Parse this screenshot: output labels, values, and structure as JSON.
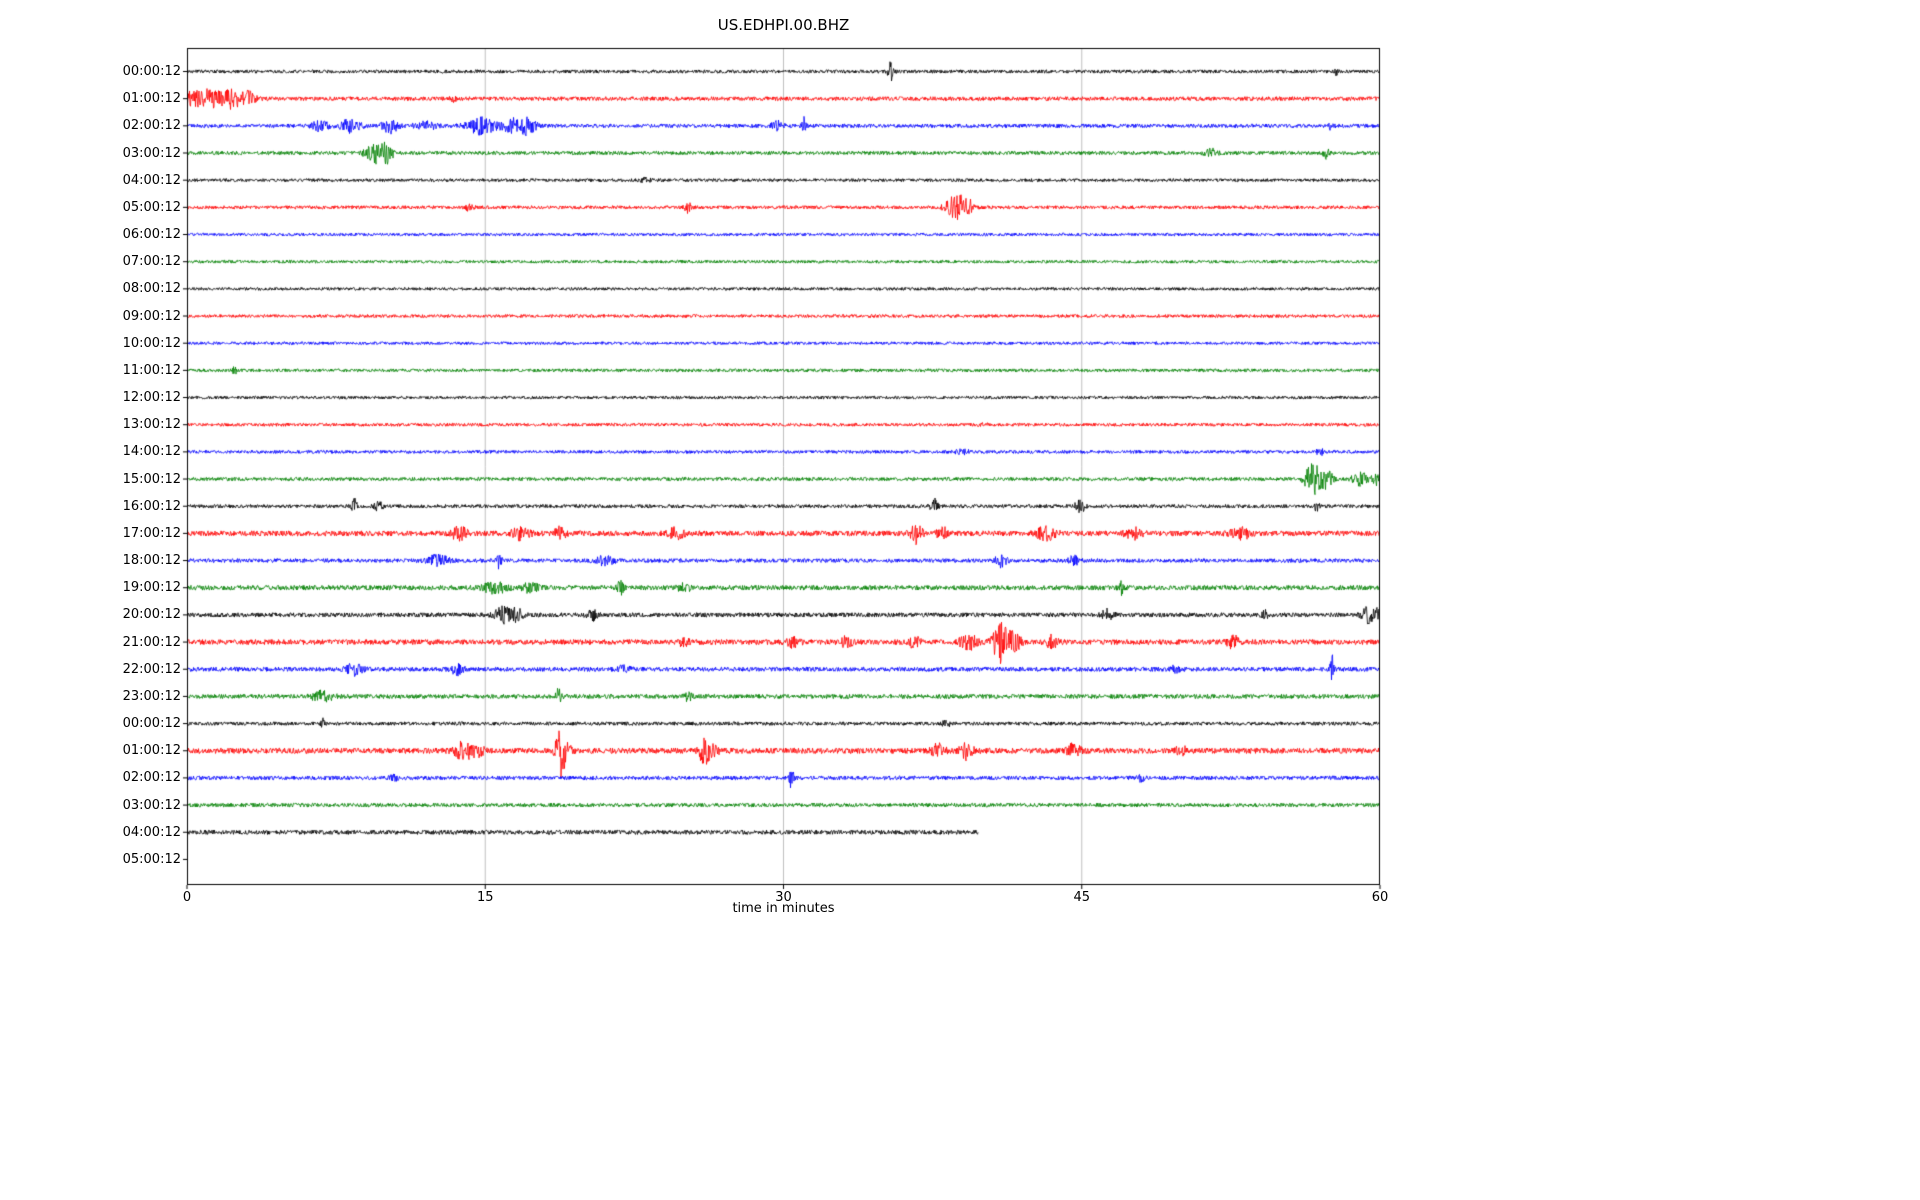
{
  "figure": {
    "title": "US.EDHPI.00.BHZ",
    "xlabel": "time in minutes",
    "background": "#ffffff"
  },
  "chart_data": {
    "type": "line",
    "subtype": "seismogram-helicorder-dayplot",
    "title": "US.EDHPI.00.BHZ",
    "xlabel": "time in minutes",
    "x_ticks": [
      "0",
      "15",
      "30",
      "45",
      "60"
    ],
    "x_range_minutes": [
      0,
      60
    ],
    "grid_minutes": [
      15,
      30,
      45
    ],
    "grid_on": true,
    "grid_color": "#b0b0b0",
    "axis_color": "#000000",
    "trace_color_cycle": [
      "#000000",
      "#ff0000",
      "#0000ff",
      "#008000"
    ],
    "rows": [
      {
        "label": "00:00:12",
        "color": "#000000",
        "noise": 1.7,
        "duration": 60,
        "events": [
          {
            "t": 35.4,
            "a": 10,
            "w": 0.15
          },
          {
            "t": 57.8,
            "a": 4,
            "w": 0.1
          }
        ]
      },
      {
        "label": "01:00:12",
        "color": "#ff0000",
        "noise": 2.0,
        "duration": 60,
        "events": [
          {
            "t": 0.3,
            "a": 8,
            "w": 0.4
          },
          {
            "t": 1.2,
            "a": 9,
            "w": 0.5
          },
          {
            "t": 2.2,
            "a": 9,
            "w": 0.5
          },
          {
            "t": 3.0,
            "a": 7,
            "w": 0.4
          },
          {
            "t": 13.5,
            "a": 3,
            "w": 0.2
          }
        ]
      },
      {
        "label": "02:00:12",
        "color": "#0000ff",
        "noise": 1.9,
        "duration": 60,
        "events": [
          {
            "t": 6.7,
            "a": 5,
            "w": 0.4
          },
          {
            "t": 8.2,
            "a": 6,
            "w": 0.5
          },
          {
            "t": 10.2,
            "a": 7,
            "w": 0.4
          },
          {
            "t": 12.0,
            "a": 4,
            "w": 0.5
          },
          {
            "t": 14.8,
            "a": 8,
            "w": 0.7
          },
          {
            "t": 16.5,
            "a": 7,
            "w": 0.6
          },
          {
            "t": 17.2,
            "a": 6,
            "w": 0.4
          },
          {
            "t": 29.7,
            "a": 4,
            "w": 0.3
          },
          {
            "t": 31.0,
            "a": 13,
            "w": 0.1
          },
          {
            "t": 57.5,
            "a": 3,
            "w": 0.2
          }
        ]
      },
      {
        "label": "03:00:12",
        "color": "#008000",
        "noise": 1.8,
        "duration": 60,
        "events": [
          {
            "t": 9.5,
            "a": 10,
            "w": 0.5
          },
          {
            "t": 10.1,
            "a": 7,
            "w": 0.3
          },
          {
            "t": 51.5,
            "a": 4,
            "w": 0.3
          },
          {
            "t": 57.3,
            "a": 5,
            "w": 0.15
          }
        ]
      },
      {
        "label": "04:00:12",
        "color": "#000000",
        "noise": 1.6,
        "duration": 60,
        "events": [
          {
            "t": 23.0,
            "a": 2,
            "w": 0.3
          }
        ]
      },
      {
        "label": "05:00:12",
        "color": "#ff0000",
        "noise": 1.7,
        "duration": 60,
        "events": [
          {
            "t": 14.2,
            "a": 3,
            "w": 0.2
          },
          {
            "t": 25.2,
            "a": 5,
            "w": 0.2
          },
          {
            "t": 38.7,
            "a": 12,
            "w": 0.5
          },
          {
            "t": 39.3,
            "a": 6,
            "w": 0.3
          }
        ]
      },
      {
        "label": "06:00:12",
        "color": "#0000ff",
        "noise": 1.5,
        "duration": 60,
        "events": []
      },
      {
        "label": "07:00:12",
        "color": "#008000",
        "noise": 1.5,
        "duration": 60,
        "events": []
      },
      {
        "label": "08:00:12",
        "color": "#000000",
        "noise": 1.5,
        "duration": 60,
        "events": []
      },
      {
        "label": "09:00:12",
        "color": "#ff0000",
        "noise": 1.6,
        "duration": 60,
        "events": []
      },
      {
        "label": "10:00:12",
        "color": "#0000ff",
        "noise": 1.5,
        "duration": 60,
        "events": []
      },
      {
        "label": "11:00:12",
        "color": "#008000",
        "noise": 1.6,
        "duration": 60,
        "events": [
          {
            "t": 2.4,
            "a": 4,
            "w": 0.1
          }
        ]
      },
      {
        "label": "12:00:12",
        "color": "#000000",
        "noise": 1.5,
        "duration": 60,
        "events": []
      },
      {
        "label": "13:00:12",
        "color": "#ff0000",
        "noise": 1.6,
        "duration": 60,
        "events": [
          {
            "t": 40.0,
            "a": 2,
            "w": 0.2
          }
        ]
      },
      {
        "label": "14:00:12",
        "color": "#0000ff",
        "noise": 1.6,
        "duration": 60,
        "events": [
          {
            "t": 39.0,
            "a": 3,
            "w": 0.3
          },
          {
            "t": 57.0,
            "a": 3,
            "w": 0.2
          }
        ]
      },
      {
        "label": "15:00:12",
        "color": "#008000",
        "noise": 1.8,
        "duration": 60,
        "events": [
          {
            "t": 56.6,
            "a": 18,
            "w": 0.35
          },
          {
            "t": 57.3,
            "a": 10,
            "w": 0.3
          },
          {
            "t": 59.0,
            "a": 6,
            "w": 0.4
          },
          {
            "t": 59.8,
            "a": 6,
            "w": 0.2
          }
        ]
      },
      {
        "label": "16:00:12",
        "color": "#000000",
        "noise": 1.8,
        "duration": 60,
        "events": [
          {
            "t": 8.4,
            "a": 7,
            "w": 0.15
          },
          {
            "t": 9.6,
            "a": 6,
            "w": 0.2
          },
          {
            "t": 37.6,
            "a": 7,
            "w": 0.2
          },
          {
            "t": 44.9,
            "a": 10,
            "w": 0.2
          },
          {
            "t": 56.8,
            "a": 4,
            "w": 0.15
          }
        ]
      },
      {
        "label": "17:00:12",
        "color": "#ff0000",
        "noise": 2.6,
        "duration": 60,
        "events": [
          {
            "t": 13.7,
            "a": 6,
            "w": 0.4
          },
          {
            "t": 16.8,
            "a": 7,
            "w": 0.4
          },
          {
            "t": 18.8,
            "a": 6,
            "w": 0.3
          },
          {
            "t": 24.6,
            "a": 5,
            "w": 0.4
          },
          {
            "t": 36.7,
            "a": 9,
            "w": 0.3
          },
          {
            "t": 38.0,
            "a": 5,
            "w": 0.3
          },
          {
            "t": 43.2,
            "a": 6,
            "w": 0.5
          },
          {
            "t": 47.6,
            "a": 5,
            "w": 0.4
          },
          {
            "t": 53.0,
            "a": 5,
            "w": 0.5
          }
        ]
      },
      {
        "label": "18:00:12",
        "color": "#0000ff",
        "noise": 2.0,
        "duration": 60,
        "events": [
          {
            "t": 12.6,
            "a": 6,
            "w": 0.5
          },
          {
            "t": 15.7,
            "a": 9,
            "w": 0.12
          },
          {
            "t": 21.0,
            "a": 4,
            "w": 0.5
          },
          {
            "t": 40.9,
            "a": 6,
            "w": 0.3
          },
          {
            "t": 44.6,
            "a": 4,
            "w": 0.3
          }
        ]
      },
      {
        "label": "19:00:12",
        "color": "#008000",
        "noise": 2.4,
        "duration": 60,
        "events": [
          {
            "t": 15.5,
            "a": 5,
            "w": 0.6
          },
          {
            "t": 17.3,
            "a": 5,
            "w": 0.4
          },
          {
            "t": 21.8,
            "a": 7,
            "w": 0.15
          },
          {
            "t": 25.0,
            "a": 4,
            "w": 0.3
          },
          {
            "t": 47.0,
            "a": 7,
            "w": 0.15
          }
        ]
      },
      {
        "label": "20:00:12",
        "color": "#000000",
        "noise": 2.2,
        "duration": 60,
        "events": [
          {
            "t": 15.9,
            "a": 8,
            "w": 0.4
          },
          {
            "t": 16.6,
            "a": 6,
            "w": 0.3
          },
          {
            "t": 20.4,
            "a": 5,
            "w": 0.3
          },
          {
            "t": 46.3,
            "a": 5,
            "w": 0.3
          },
          {
            "t": 54.2,
            "a": 4,
            "w": 0.2
          },
          {
            "t": 59.4,
            "a": 8,
            "w": 0.3
          },
          {
            "t": 59.9,
            "a": 6,
            "w": 0.2
          }
        ]
      },
      {
        "label": "21:00:12",
        "color": "#ff0000",
        "noise": 2.6,
        "duration": 60,
        "events": [
          {
            "t": 25.0,
            "a": 6,
            "w": 0.2
          },
          {
            "t": 30.5,
            "a": 5,
            "w": 0.3
          },
          {
            "t": 33.2,
            "a": 5,
            "w": 0.3
          },
          {
            "t": 36.6,
            "a": 6,
            "w": 0.3
          },
          {
            "t": 39.3,
            "a": 8,
            "w": 0.4
          },
          {
            "t": 40.9,
            "a": 20,
            "w": 0.35
          },
          {
            "t": 41.6,
            "a": 12,
            "w": 0.3
          },
          {
            "t": 43.5,
            "a": 6,
            "w": 0.3
          },
          {
            "t": 52.6,
            "a": 6,
            "w": 0.3
          }
        ]
      },
      {
        "label": "22:00:12",
        "color": "#0000ff",
        "noise": 2.2,
        "duration": 60,
        "events": [
          {
            "t": 8.4,
            "a": 5,
            "w": 0.4
          },
          {
            "t": 13.6,
            "a": 5,
            "w": 0.3
          },
          {
            "t": 22.0,
            "a": 3,
            "w": 0.3
          },
          {
            "t": 49.7,
            "a": 4,
            "w": 0.2
          },
          {
            "t": 57.6,
            "a": 16,
            "w": 0.1
          }
        ]
      },
      {
        "label": "23:00:12",
        "color": "#008000",
        "noise": 2.2,
        "duration": 60,
        "events": [
          {
            "t": 6.8,
            "a": 5,
            "w": 0.5
          },
          {
            "t": 18.7,
            "a": 8,
            "w": 0.15
          },
          {
            "t": 25.2,
            "a": 4,
            "w": 0.2
          }
        ]
      },
      {
        "label": "00:00:12",
        "color": "#000000",
        "noise": 1.8,
        "duration": 60,
        "events": [
          {
            "t": 6.8,
            "a": 6,
            "w": 0.08
          },
          {
            "t": 38.2,
            "a": 3,
            "w": 0.2
          }
        ]
      },
      {
        "label": "01:00:12",
        "color": "#ff0000",
        "noise": 2.8,
        "duration": 60,
        "events": [
          {
            "t": 13.9,
            "a": 9,
            "w": 0.4
          },
          {
            "t": 14.6,
            "a": 7,
            "w": 0.3
          },
          {
            "t": 18.75,
            "a": 22,
            "w": 0.2
          },
          {
            "t": 19.0,
            "a": 10,
            "w": 0.3
          },
          {
            "t": 26.0,
            "a": 14,
            "w": 0.25
          },
          {
            "t": 26.5,
            "a": 6,
            "w": 0.3
          },
          {
            "t": 37.8,
            "a": 7,
            "w": 0.3
          },
          {
            "t": 39.2,
            "a": 8,
            "w": 0.3
          },
          {
            "t": 44.6,
            "a": 7,
            "w": 0.3
          },
          {
            "t": 50.0,
            "a": 4,
            "w": 0.3
          }
        ]
      },
      {
        "label": "02:00:12",
        "color": "#0000ff",
        "noise": 2.0,
        "duration": 60,
        "events": [
          {
            "t": 10.4,
            "a": 3,
            "w": 0.2
          },
          {
            "t": 30.4,
            "a": 12,
            "w": 0.12
          },
          {
            "t": 48.0,
            "a": 3,
            "w": 0.2
          }
        ]
      },
      {
        "label": "03:00:12",
        "color": "#008000",
        "noise": 1.9,
        "duration": 60,
        "events": []
      },
      {
        "label": "04:00:12",
        "color": "#000000",
        "noise": 2.2,
        "duration": 39.8,
        "events": []
      },
      {
        "label": "05:00:12",
        "color": "#ff0000",
        "noise": 0,
        "duration": 0,
        "events": []
      }
    ]
  }
}
